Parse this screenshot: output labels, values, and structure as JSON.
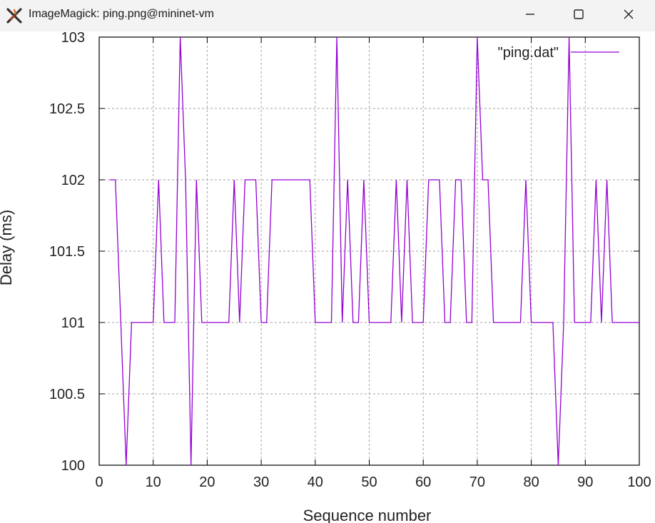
{
  "window": {
    "title": "ImageMagick: ping.png@mininet-vm",
    "icon": "imagemagick-x-icon",
    "buttons": [
      "minimize-icon",
      "maximize-icon",
      "close-icon"
    ]
  },
  "chart_data": {
    "type": "line",
    "xlabel": "Sequence number",
    "ylabel": "Delay (ms)",
    "xlim": [
      0,
      100
    ],
    "ylim": [
      100,
      103
    ],
    "x_ticks": [
      "0",
      "10",
      "20",
      "30",
      "40",
      "50",
      "60",
      "70",
      "80",
      "90",
      "100"
    ],
    "y_ticks": [
      "100",
      "100.5",
      "101",
      "101.5",
      "102",
      "102.5",
      "103"
    ],
    "grid": true,
    "legend_position": "top-right",
    "series": [
      {
        "name": "\"ping.dat\"",
        "color": "#9400d3",
        "x": [
          2,
          3,
          4,
          5,
          6,
          7,
          8,
          9,
          10,
          11,
          12,
          13,
          14,
          15,
          16,
          17,
          18,
          19,
          20,
          21,
          22,
          23,
          24,
          25,
          26,
          27,
          28,
          29,
          30,
          31,
          32,
          33,
          34,
          35,
          36,
          37,
          38,
          39,
          40,
          41,
          42,
          43,
          44,
          45,
          46,
          47,
          48,
          49,
          50,
          51,
          52,
          53,
          54,
          55,
          56,
          57,
          58,
          59,
          60,
          61,
          62,
          63,
          64,
          65,
          66,
          67,
          68,
          69,
          70,
          71,
          72,
          73,
          74,
          75,
          76,
          77,
          78,
          79,
          80,
          81,
          82,
          83,
          84,
          85,
          86,
          87,
          88,
          89,
          90,
          91,
          92,
          93,
          94,
          95,
          96,
          97,
          98,
          99,
          100
        ],
        "y": [
          102,
          102,
          101,
          100,
          101,
          101,
          101,
          101,
          101,
          102,
          101,
          101,
          101,
          103,
          102,
          100,
          102,
          101,
          101,
          101,
          101,
          101,
          101,
          102,
          101,
          102,
          102,
          102,
          101,
          101,
          102,
          102,
          102,
          102,
          102,
          102,
          102,
          102,
          101,
          101,
          101,
          101,
          103,
          101,
          102,
          101,
          101,
          102,
          101,
          101,
          101,
          101,
          101,
          102,
          101,
          102,
          101,
          101,
          101,
          102,
          102,
          102,
          101,
          101,
          102,
          102,
          101,
          101,
          103,
          102,
          102,
          101,
          101,
          101,
          101,
          101,
          101,
          102,
          101,
          101,
          101,
          101,
          101,
          100,
          101,
          103,
          101,
          101,
          101,
          101,
          102,
          101,
          102,
          101,
          101,
          101,
          101,
          101,
          101
        ]
      }
    ]
  }
}
